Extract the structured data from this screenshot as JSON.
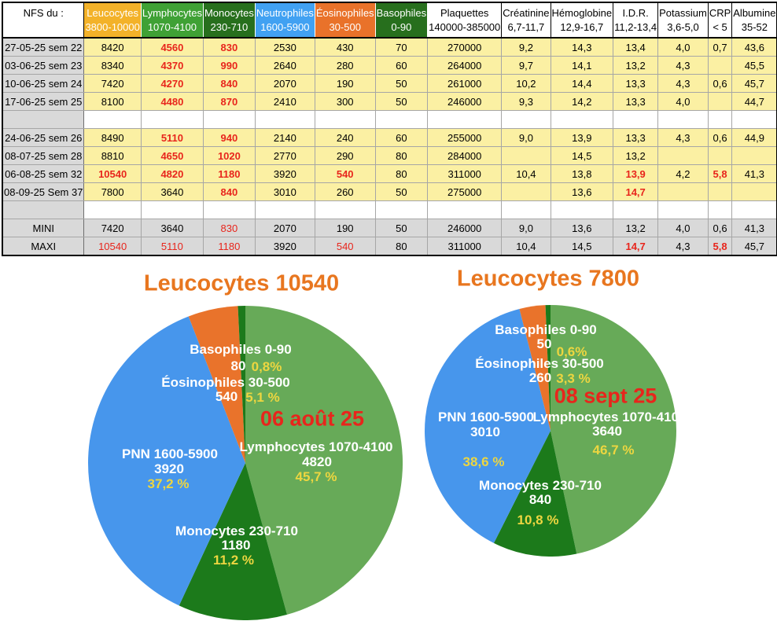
{
  "table": {
    "corner_label": "NFS du :",
    "columns": [
      {
        "id": "leucocytes",
        "label": "Leucocytes",
        "range": "3800-10000",
        "bg": "#F3B229",
        "fg": "#FFFFFF"
      },
      {
        "id": "lymphocytes",
        "label": "Lymphocytes",
        "range": "1070-4100",
        "bg": "#3FA135",
        "fg": "#FFFFFF"
      },
      {
        "id": "monocytes",
        "label": "Monocytes",
        "range": "230-710",
        "bg": "#276F1D",
        "fg": "#FFFFFF"
      },
      {
        "id": "neutrophiles",
        "label": "Neutrophiles",
        "range": "1600-5900",
        "bg": "#41A1F2",
        "fg": "#FFFFFF"
      },
      {
        "id": "eosinophiles",
        "label": "Éosinophiles",
        "range": "30-500",
        "bg": "#E9722A",
        "fg": "#FFFFFF"
      },
      {
        "id": "basophiles",
        "label": "Basophiles",
        "range": "0-90",
        "bg": "#276F1D",
        "fg": "#FFFFFF"
      },
      {
        "id": "plaquettes",
        "label": "Plaquettes",
        "range": "140000-385000",
        "bg": "#FFFFFF",
        "fg": "#000000"
      },
      {
        "id": "creatinine",
        "label": "Créatinine",
        "range": "6,7-11,7",
        "bg": "#FFFFFF",
        "fg": "#000000"
      },
      {
        "id": "hemoglobine",
        "label": "Hémoglobine",
        "range": "12,9-16,7",
        "bg": "#FFFFFF",
        "fg": "#000000"
      },
      {
        "id": "idr",
        "label": "I.D.R.",
        "range": "11,2-13,4",
        "bg": "#FFFFFF",
        "fg": "#000000"
      },
      {
        "id": "potassium",
        "label": "Potassium",
        "range": "3,6-5,0",
        "bg": "#FFFFFF",
        "fg": "#000000"
      },
      {
        "id": "crp",
        "label": "CRP",
        "range": "< 5",
        "bg": "#FFFFFF",
        "fg": "#000000"
      },
      {
        "id": "albumine",
        "label": "Albumine",
        "range": "35-52",
        "bg": "#FFFFFF",
        "fg": "#000000"
      }
    ],
    "rows": [
      {
        "label": "27-05-25 sem 22",
        "type": "data",
        "cells": [
          "8420",
          {
            "t": "4560",
            "red": true,
            "bold": true
          },
          {
            "t": "830",
            "red": true,
            "bold": true
          },
          "2530",
          "430",
          "70",
          "270000",
          "9,2",
          "14,3",
          "13,4",
          "4,0",
          "0,7",
          "43,6"
        ]
      },
      {
        "label": "03-06-25 sem 23",
        "type": "data",
        "cells": [
          "8340",
          {
            "t": "4370",
            "red": true,
            "bold": true
          },
          {
            "t": "990",
            "red": true,
            "bold": true
          },
          "2640",
          "280",
          "60",
          "264000",
          "9,7",
          "14,1",
          "13,2",
          "4,3",
          "",
          "45,5"
        ]
      },
      {
        "label": "10-06-25 sem 24",
        "type": "data",
        "cells": [
          "7420",
          {
            "t": "4270",
            "red": true,
            "bold": true
          },
          {
            "t": "840",
            "red": true,
            "bold": true
          },
          "2070",
          "190",
          "50",
          "261000",
          "10,2",
          "14,4",
          "13,3",
          "4,3",
          "0,6",
          "45,7"
        ]
      },
      {
        "label": "17-06-25 sem 25",
        "type": "data",
        "cells": [
          "8100",
          {
            "t": "4480",
            "red": true,
            "bold": true
          },
          {
            "t": "870",
            "red": true,
            "bold": true
          },
          "2410",
          "300",
          "50",
          "246000",
          "9,3",
          "14,2",
          "13,3",
          "4,0",
          "",
          "44,7"
        ]
      },
      {
        "label": "",
        "type": "spacer",
        "cells": [
          "",
          "",
          "",
          "",
          "",
          "",
          "",
          "",
          "",
          "",
          "",
          "",
          ""
        ]
      },
      {
        "label": "24-06-25 sem 26",
        "type": "data",
        "cells": [
          "8490",
          {
            "t": "5110",
            "red": true,
            "bold": true
          },
          {
            "t": "940",
            "red": true,
            "bold": true
          },
          "2140",
          "240",
          "60",
          "255000",
          "9,0",
          "13,9",
          "13,3",
          "4,3",
          "0,6",
          "44,9"
        ]
      },
      {
        "label": "08-07-25 sem 28",
        "type": "data",
        "cells": [
          "8810",
          {
            "t": "4650",
            "red": true,
            "bold": true
          },
          {
            "t": "1020",
            "red": true,
            "bold": true
          },
          "2770",
          "290",
          "80",
          "284000",
          "",
          "14,5",
          "13,2",
          "",
          "",
          ""
        ]
      },
      {
        "label": "06-08-25 sem 32",
        "type": "data",
        "cells": [
          {
            "t": "10540",
            "red": true,
            "bold": true
          },
          {
            "t": "4820",
            "red": true,
            "bold": true
          },
          {
            "t": "1180",
            "red": true,
            "bold": true
          },
          "3920",
          {
            "t": "540",
            "red": true,
            "bold": true
          },
          "80",
          "311000",
          "10,4",
          "13,8",
          {
            "t": "13,9",
            "red": true,
            "bold": true
          },
          "4,2",
          {
            "t": "5,8",
            "red": true,
            "bold": true
          },
          "41,3"
        ]
      },
      {
        "label": "08-09-25 Sem 37",
        "type": "data",
        "cells": [
          "7800",
          "3640",
          {
            "t": "840",
            "red": true,
            "bold": true
          },
          "3010",
          "260",
          "50",
          "275000",
          "",
          "13,6",
          {
            "t": "14,7",
            "red": true,
            "bold": true
          },
          "",
          "",
          ""
        ]
      },
      {
        "label": "",
        "type": "spacer",
        "cells": [
          "",
          "",
          "",
          "",
          "",
          "",
          "",
          "",
          "",
          "",
          "",
          "",
          ""
        ]
      },
      {
        "label": "MINI",
        "type": "summary",
        "cells": [
          "7420",
          "3640",
          {
            "t": "830",
            "red": true
          },
          "2070",
          "190",
          "50",
          "246000",
          "9,0",
          "13,6",
          "13,2",
          "4,0",
          "0,6",
          "41,3"
        ]
      },
      {
        "label": "MAXI",
        "type": "summary",
        "cells": [
          {
            "t": "10540",
            "red": true
          },
          {
            "t": "5110",
            "red": true
          },
          {
            "t": "1180",
            "red": true
          },
          "3920",
          {
            "t": "540",
            "red": true
          },
          "80",
          "311000",
          "10,4",
          "14,5",
          {
            "t": "14,7",
            "red": true,
            "bold": true
          },
          "4,3",
          {
            "t": "5,8",
            "red": true,
            "bold": true
          },
          "45,7"
        ]
      }
    ]
  },
  "chart_data": [
    {
      "type": "pie",
      "title": "Leucocytes 10540",
      "date_label": "06 août 25",
      "total": 10540,
      "legend_position": "inside",
      "slices": [
        {
          "id": "lymphocytes",
          "name": "Lymphocytes 1070-4100",
          "value": 4820,
          "pct": "45,7 %",
          "color": "#67AA58"
        },
        {
          "id": "monocytes",
          "name": "Monocytes 230-710",
          "value": 1180,
          "pct": "11,2 %",
          "color": "#1C7A1B"
        },
        {
          "id": "pnn",
          "name": "PNN 1600-5900",
          "value": 3920,
          "pct": "37,2 %",
          "color": "#4796EC"
        },
        {
          "id": "eosinophiles",
          "name": "Éosinophiles 30-500",
          "value": 540,
          "pct": "5,1 %",
          "color": "#E9732B"
        },
        {
          "id": "basophiles",
          "name": "Basophiles 0-90",
          "value": 80,
          "pct": "0,8%",
          "color": "#1C7A1B"
        }
      ]
    },
    {
      "type": "pie",
      "title": "Leucocytes 7800",
      "date_label": "08 sept 25",
      "total": 7800,
      "legend_position": "inside",
      "slices": [
        {
          "id": "lymphocytes",
          "name": "Lymphocytes 1070-4100",
          "value": 3640,
          "pct": "46,7 %",
          "color": "#67AA58"
        },
        {
          "id": "monocytes",
          "name": "Monocytes 230-710",
          "value": 840,
          "pct": "10,8 %",
          "color": "#1C7A1B"
        },
        {
          "id": "pnn",
          "name": "PNN 1600-5900",
          "value": 3010,
          "pct": "38,6 %",
          "color": "#4796EC"
        },
        {
          "id": "eosinophiles",
          "name": "Éosinophiles 30-500",
          "value": 260,
          "pct": "3,3 %",
          "color": "#E9732B"
        },
        {
          "id": "basophiles",
          "name": "Basophiles 0-90",
          "value": 50,
          "pct": "0,6%",
          "color": "#1C7A1B"
        }
      ]
    }
  ]
}
